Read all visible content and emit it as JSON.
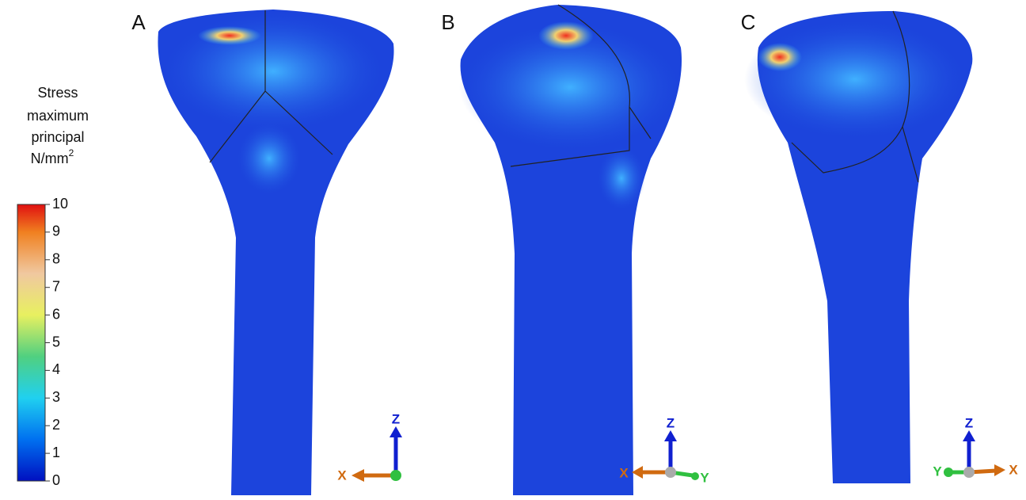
{
  "legend": {
    "title_lines": [
      "Stress",
      "maximum",
      "principal"
    ],
    "unit": "N/mm",
    "unit_sup": "2",
    "range": [
      0,
      10
    ],
    "ticks": [
      0,
      1,
      2,
      3,
      4,
      5,
      6,
      7,
      8,
      9,
      10
    ]
  },
  "panels": [
    {
      "label": "A",
      "axes": [
        "Z",
        "X"
      ]
    },
    {
      "label": "B",
      "axes": [
        "Z",
        "X",
        "Y"
      ]
    },
    {
      "label": "C",
      "axes": [
        "Z",
        "Y",
        "X"
      ]
    }
  ]
}
